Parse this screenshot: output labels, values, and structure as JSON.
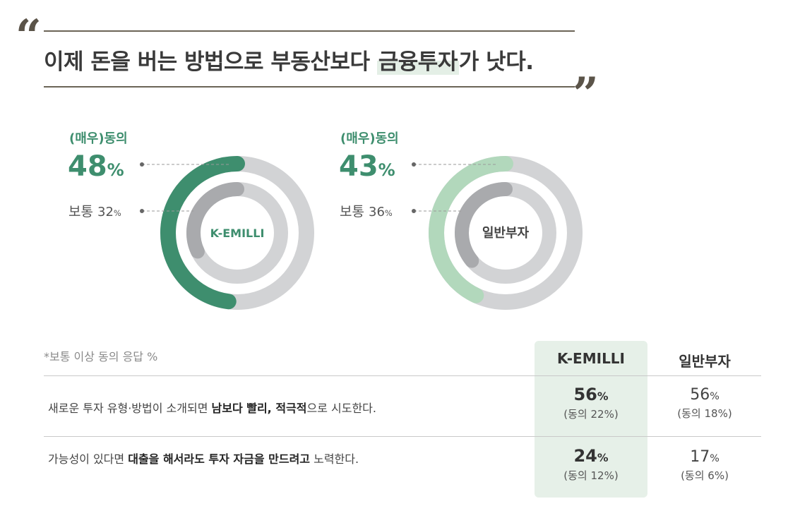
{
  "headline": {
    "open_quote": "“",
    "close_quote": "”",
    "text_before": "이제 돈을 버는 방법으로 부동산보다 ",
    "text_highlight": "금융투자",
    "text_after": "가 낫다."
  },
  "chart_data": [
    {
      "type": "pie",
      "center_label": "K-EMILLI",
      "series": [
        {
          "name": "(매우)동의",
          "value": 48,
          "color": "#3e8e6e"
        },
        {
          "name": "보통",
          "value": 32,
          "color": "#a9aaad"
        }
      ],
      "track_color": "#d2d3d5"
    },
    {
      "type": "pie",
      "center_label": "일반부자",
      "series": [
        {
          "name": "(매우)동의",
          "value": 43,
          "color": "#b2d8bc"
        },
        {
          "name": "보통",
          "value": 36,
          "color": "#a9aaad"
        }
      ],
      "track_color": "#d2d3d5"
    }
  ],
  "percent_unit": "%",
  "table": {
    "footnote": "*보통 이상 동의 응답 %",
    "columns": [
      "K-EMILLI",
      "일반부자"
    ],
    "highlight_color": "#e6f0e8",
    "rows": [
      {
        "statement_parts": [
          {
            "text": "새로운 투자 유형·방법이 소개되면 ",
            "bold": false
          },
          {
            "text": "남보다 빨리, 적극적",
            "bold": true
          },
          {
            "text": "으로 시도한다.",
            "bold": false
          }
        ],
        "kemilli_value": "56",
        "kemilli_sub": "(동의 22%)",
        "general_value": "56",
        "general_sub": "(동의 18%)"
      },
      {
        "statement_parts": [
          {
            "text": "가능성이 있다면 ",
            "bold": false
          },
          {
            "text": "대출을 해서라도 투자 자금을 만드려고",
            "bold": true
          },
          {
            "text": " 노력한다.",
            "bold": false
          }
        ],
        "kemilli_value": "24",
        "kemilli_sub": "(동의 12%)",
        "general_value": "17",
        "general_sub": "(동의 6%)"
      }
    ]
  }
}
